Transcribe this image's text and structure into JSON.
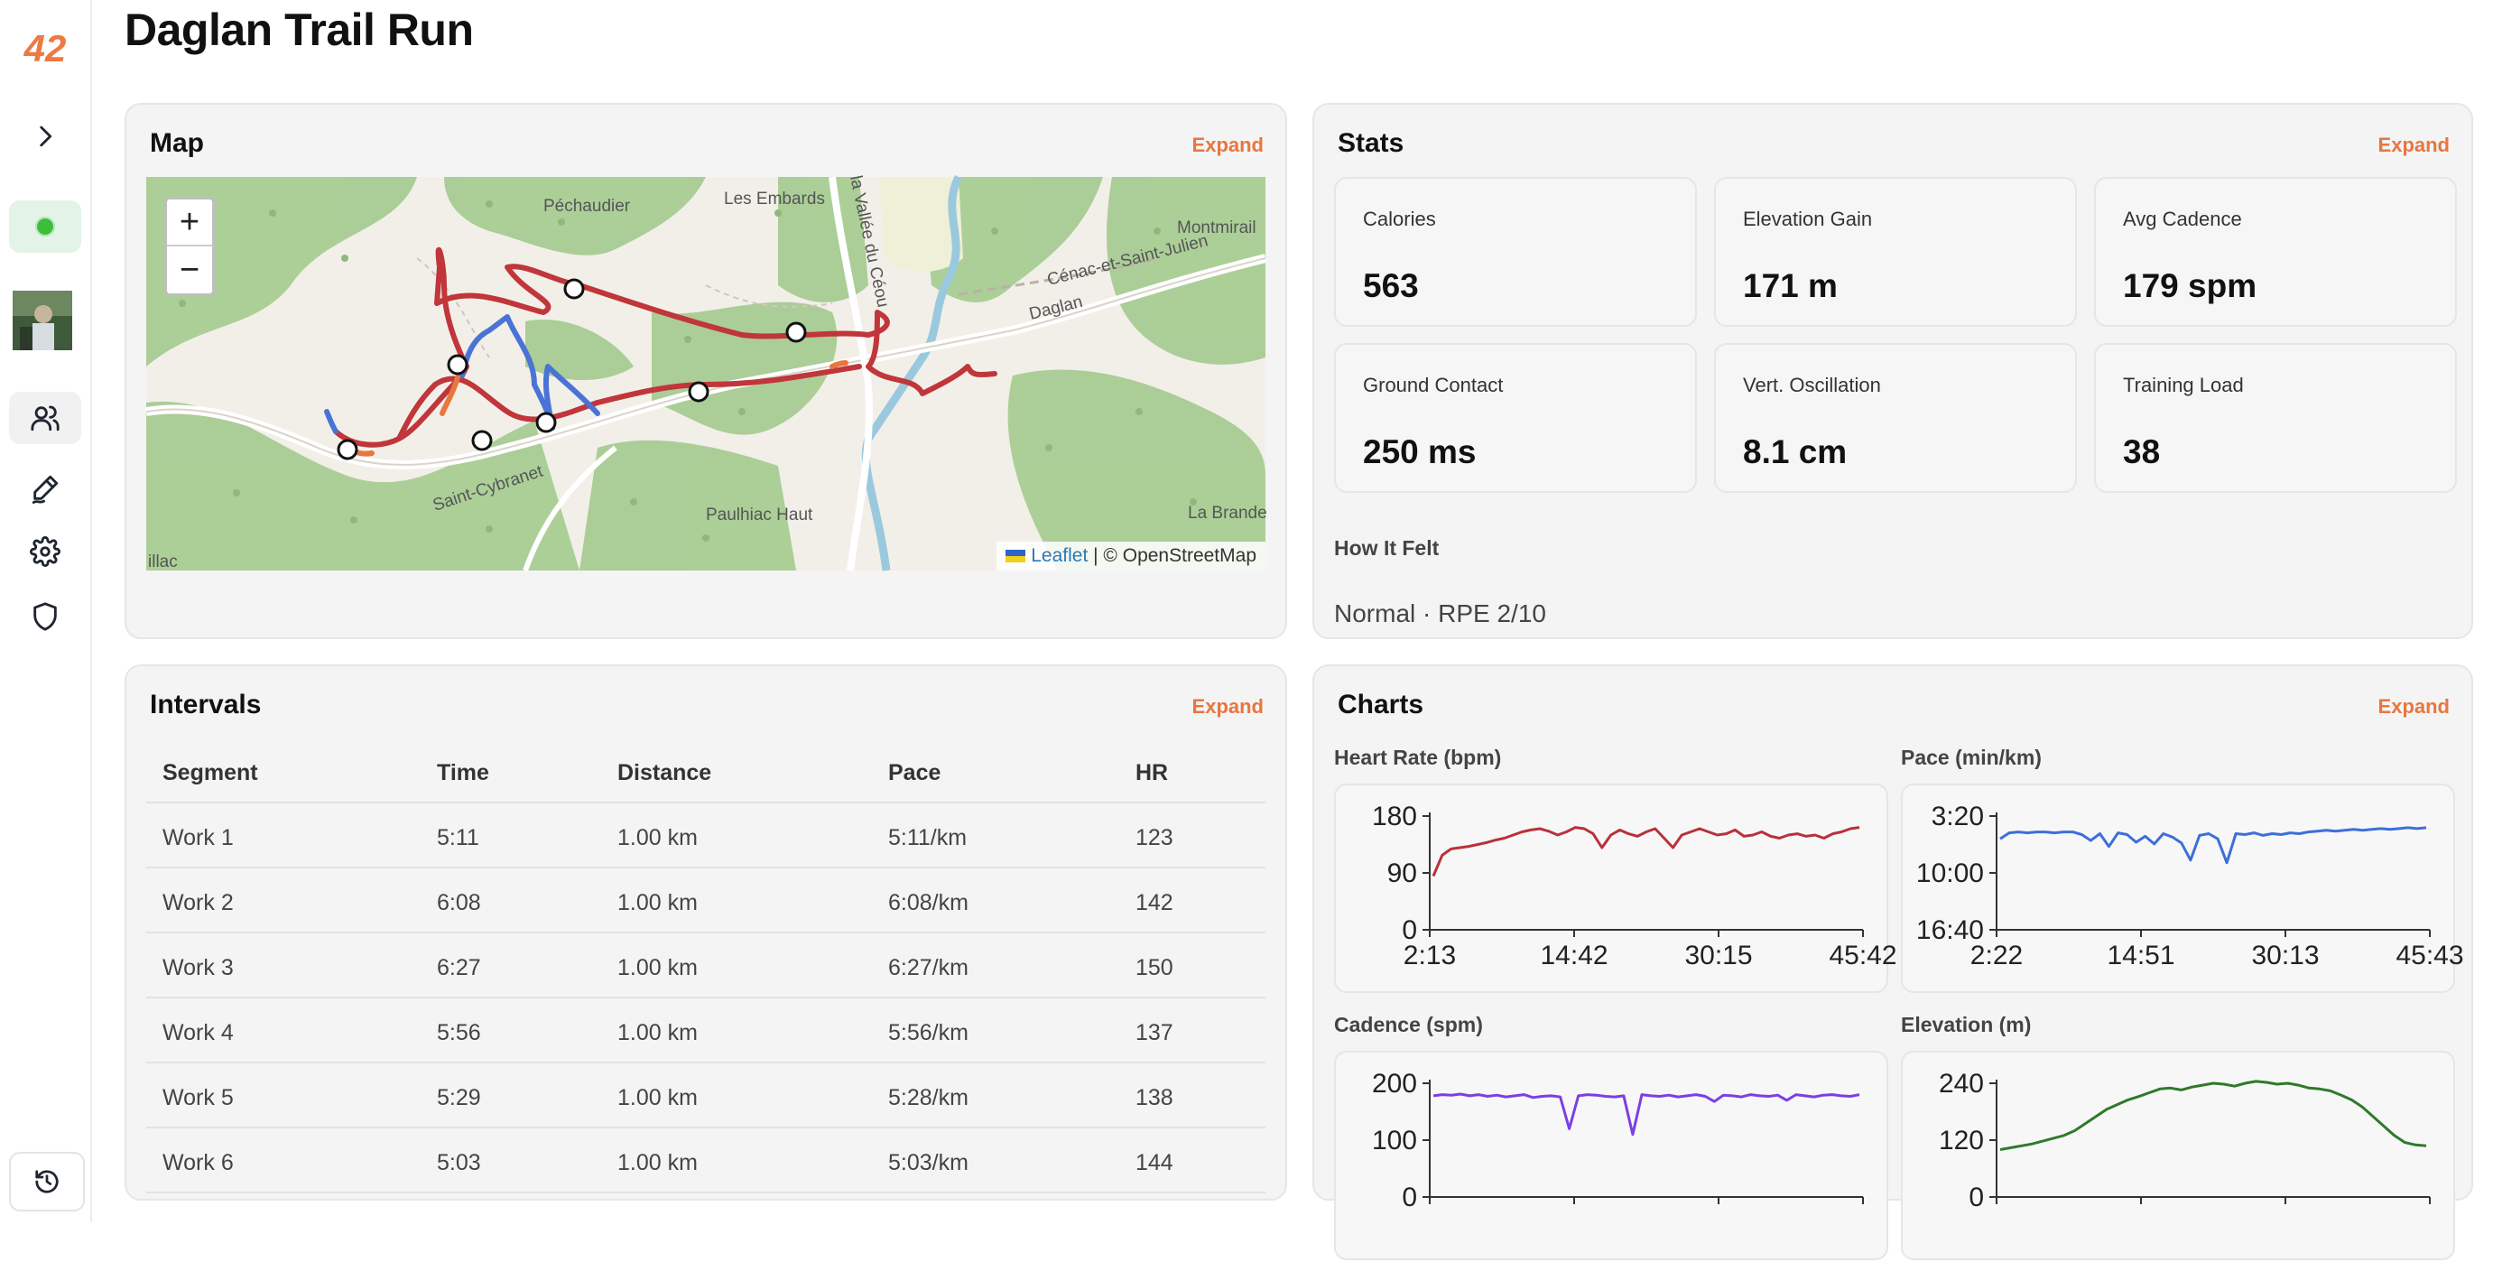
{
  "app": {
    "logo": "42"
  },
  "page": {
    "title": "Daglan Trail Run"
  },
  "sidebar": {
    "items": [
      {
        "name": "expand",
        "icon": "chevron-right-icon"
      },
      {
        "name": "status",
        "icon": "status-dot-icon"
      },
      {
        "name": "avatar",
        "icon": "avatar"
      },
      {
        "name": "friends",
        "icon": "users-icon"
      },
      {
        "name": "sign",
        "icon": "pen-icon"
      },
      {
        "name": "settings",
        "icon": "gear-icon"
      },
      {
        "name": "security",
        "icon": "shield-icon"
      },
      {
        "name": "history",
        "icon": "history-icon"
      }
    ],
    "status_color": "#3bbf3b"
  },
  "map_card": {
    "title": "Map",
    "expand": "Expand",
    "zoom_in": "+",
    "zoom_out": "−",
    "attribution_leaflet": "Leaflet",
    "attribution_sep": " | © OpenStreetMap",
    "place_labels": [
      "Péchaudier",
      "Les Embards",
      "Montmirail",
      "Cénac-et-Saint-Julien",
      "Daglan",
      "Paulhiac Haut",
      "La Brande",
      "Saint-Cybranet",
      "illac",
      "la Vallée du Céou"
    ],
    "route_colors": {
      "main": "#c0363a",
      "fast": "#4a73d6",
      "mid": "#e8763e"
    }
  },
  "stats_card": {
    "title": "Stats",
    "expand": "Expand",
    "items": [
      {
        "label": "Calories",
        "value": "563"
      },
      {
        "label": "Elevation Gain",
        "value": "171 m"
      },
      {
        "label": "Avg Cadence",
        "value": "179 spm"
      },
      {
        "label": "Ground Contact",
        "value": "250 ms"
      },
      {
        "label": "Vert. Oscillation",
        "value": "8.1 cm"
      },
      {
        "label": "Training Load",
        "value": "38"
      }
    ],
    "felt_label": "How It Felt",
    "felt_value": "Normal · RPE 2/10"
  },
  "intervals_card": {
    "title": "Intervals",
    "expand": "Expand",
    "columns": [
      "Segment",
      "Time",
      "Distance",
      "Pace",
      "HR"
    ],
    "rows": [
      [
        "Work 1",
        "5:11",
        "1.00 km",
        "5:11/km",
        "123"
      ],
      [
        "Work 2",
        "6:08",
        "1.00 km",
        "6:08/km",
        "142"
      ],
      [
        "Work 3",
        "6:27",
        "1.00 km",
        "6:27/km",
        "150"
      ],
      [
        "Work 4",
        "5:56",
        "1.00 km",
        "5:56/km",
        "137"
      ],
      [
        "Work 5",
        "5:29",
        "1.00 km",
        "5:28/km",
        "138"
      ],
      [
        "Work 6",
        "5:03",
        "1.00 km",
        "5:03/km",
        "144"
      ]
    ]
  },
  "charts_card": {
    "title": "Charts",
    "expand": "Expand"
  },
  "chart_data": [
    {
      "type": "line",
      "title": "Heart Rate (bpm)",
      "color": "#b8323a",
      "x_ticks": [
        "2:13",
        "14:42",
        "30:15",
        "45:42"
      ],
      "y_ticks": [
        "180",
        "90",
        "0"
      ],
      "ylim": [
        0,
        180
      ],
      "series": [
        {
          "values": [
            85,
            118,
            128,
            130,
            132,
            135,
            138,
            142,
            145,
            150,
            155,
            158,
            160,
            156,
            150,
            155,
            162,
            160,
            152,
            130,
            150,
            158,
            152,
            148,
            155,
            160,
            145,
            130,
            150,
            155,
            160,
            155,
            150,
            152,
            158,
            148,
            150,
            155,
            148,
            145,
            150,
            152,
            148,
            150,
            145,
            152,
            155,
            160,
            162
          ]
        }
      ]
    },
    {
      "type": "line",
      "title": "Pace (min/km)",
      "color": "#3d6fd9",
      "x_ticks": [
        "2:22",
        "14:51",
        "30:13",
        "45:43"
      ],
      "y_ticks": [
        "3:20",
        "10:00",
        "16:40"
      ],
      "ylim": [
        "16:40",
        "3:20"
      ],
      "series": [
        {
          "values": [
            6.0,
            5.3,
            5.2,
            5.3,
            5.2,
            5.2,
            5.3,
            5.2,
            5.2,
            5.5,
            6.2,
            5.4,
            6.9,
            5.3,
            5.5,
            6.4,
            5.7,
            6.6,
            5.4,
            5.8,
            6.5,
            8.5,
            5.6,
            5.4,
            6.0,
            8.8,
            5.4,
            5.5,
            5.3,
            5.6,
            5.4,
            5.5,
            5.3,
            5.4,
            5.2,
            5.1,
            5.0,
            5.1,
            5.0,
            4.9,
            5.0,
            4.9,
            4.8,
            4.9,
            4.8,
            4.7,
            4.8,
            4.7
          ]
        }
      ]
    },
    {
      "type": "line",
      "title": "Cadence (spm)",
      "color": "#7b3fe4",
      "x_ticks": [],
      "y_ticks": [
        "200",
        "100",
        "0"
      ],
      "ylim": [
        0,
        200
      ],
      "series": [
        {
          "values": [
            178,
            180,
            179,
            181,
            178,
            180,
            177,
            179,
            176,
            178,
            180,
            175,
            177,
            178,
            176,
            120,
            178,
            180,
            179,
            177,
            176,
            178,
            110,
            180,
            178,
            177,
            179,
            176,
            178,
            180,
            177,
            168,
            179,
            178,
            176,
            180,
            178,
            177,
            179,
            170,
            180,
            178,
            176,
            179,
            180,
            178,
            177,
            180
          ]
        }
      ]
    },
    {
      "type": "line",
      "title": "Elevation (m)",
      "color": "#2f7a2a",
      "x_ticks": [],
      "y_ticks": [
        "240",
        "120",
        "0"
      ],
      "ylim": [
        0,
        240
      ],
      "series": [
        {
          "values": [
            100,
            104,
            108,
            112,
            118,
            124,
            130,
            140,
            155,
            170,
            185,
            195,
            205,
            212,
            220,
            228,
            230,
            226,
            232,
            236,
            240,
            238,
            234,
            240,
            244,
            242,
            238,
            240,
            236,
            230,
            228,
            224,
            215,
            205,
            190,
            170,
            150,
            130,
            115,
            110,
            108
          ]
        }
      ]
    }
  ]
}
